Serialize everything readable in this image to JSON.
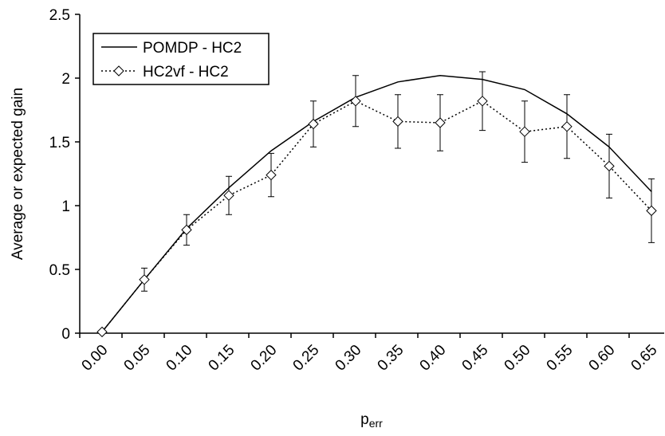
{
  "chart_data": {
    "type": "line",
    "y_label": "Average or expected gain",
    "x_label": "p",
    "x_label_subscript": "err",
    "categories": [
      "0.00",
      "0.05",
      "0.10",
      "0.15",
      "0.20",
      "0.25",
      "0.30",
      "0.35",
      "0.40",
      "0.45",
      "0.50",
      "0.55",
      "0.60",
      "0.65"
    ],
    "series": [
      {
        "name": "POMDP - HC2",
        "color": "#000000",
        "style": "solid",
        "marker": "none",
        "values": [
          0.01,
          0.42,
          0.82,
          1.14,
          1.43,
          1.66,
          1.85,
          1.97,
          2.02,
          1.99,
          1.91,
          1.72,
          1.46,
          1.11
        ]
      },
      {
        "name": "HC2vf - HC2",
        "color": "#000000",
        "style": "dotted",
        "marker": "diamond",
        "values": [
          0.01,
          0.42,
          0.81,
          1.08,
          1.24,
          1.64,
          1.82,
          1.66,
          1.65,
          1.82,
          1.58,
          1.62,
          1.31,
          0.96
        ],
        "errors": [
          0,
          0.09,
          0.12,
          0.15,
          0.17,
          0.18,
          0.2,
          0.21,
          0.22,
          0.23,
          0.24,
          0.25,
          0.25,
          0.25
        ]
      }
    ],
    "ylim": [
      0,
      2.5
    ],
    "yticks": [
      0,
      0.5,
      1,
      1.5,
      2,
      2.5
    ],
    "grid": false,
    "legend": "upper-left"
  }
}
